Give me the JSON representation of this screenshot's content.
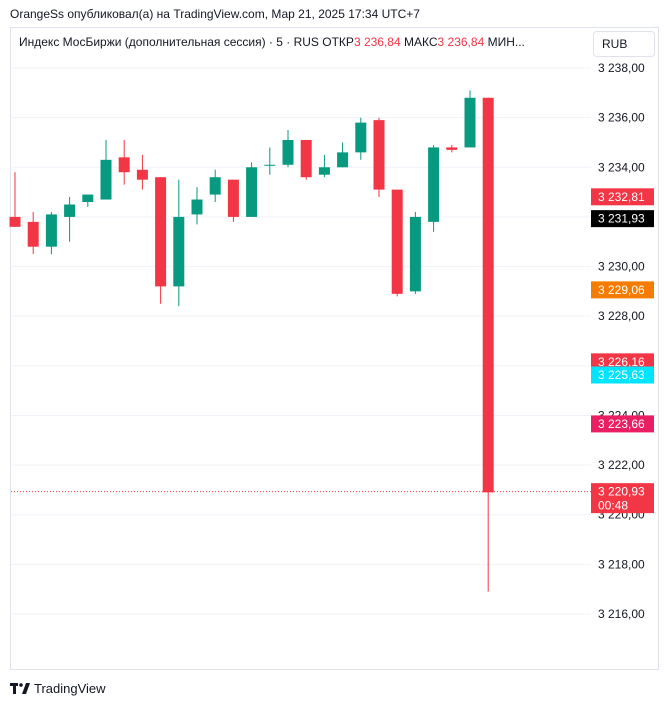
{
  "header": {
    "text": "OrangeSs опубликовал(а) на TradingView.com, Мар 21, 2025 17:34 UTC+7"
  },
  "legend": {
    "symbol": "Индекс МосБиржи (дополнительная сессия) · 5 · RUS",
    "open_label": "ОТКР",
    "open_value": "3 236,84",
    "high_label": "МАКС",
    "high_value": "3 236,84",
    "low_label": "МИН..."
  },
  "currency_button": {
    "label": "RUB"
  },
  "colors": {
    "up": "#089981",
    "down": "#f23645",
    "grid": "#f0f3fa"
  },
  "chart_data": {
    "type": "candlestick",
    "ylim": [
      3214.4,
      3239.2
    ],
    "y_ticks": [
      3238,
      3236,
      3234,
      3232,
      3230,
      3228,
      3226,
      3224,
      3222,
      3220,
      3218,
      3216
    ],
    "y_tick_labels": [
      "3 238,00",
      "3 236,00",
      "3 234,00",
      "",
      "3 230,00",
      "3 228,00",
      "",
      "3 224,00",
      "3 222,00",
      "3 220,00",
      "3 218,00",
      "3 216,00"
    ],
    "candles": [
      {
        "o": 3232.0,
        "h": 3233.8,
        "l": 3231.6,
        "c": 3231.6
      },
      {
        "o": 3231.8,
        "h": 3232.2,
        "l": 3230.5,
        "c": 3230.8
      },
      {
        "o": 3230.8,
        "h": 3232.2,
        "l": 3230.5,
        "c": 3232.1
      },
      {
        "o": 3232.0,
        "h": 3232.8,
        "l": 3231.0,
        "c": 3232.5
      },
      {
        "o": 3232.6,
        "h": 3232.9,
        "l": 3232.4,
        "c": 3232.9
      },
      {
        "o": 3232.7,
        "h": 3235.1,
        "l": 3232.7,
        "c": 3234.3
      },
      {
        "o": 3234.4,
        "h": 3235.1,
        "l": 3233.3,
        "c": 3233.8
      },
      {
        "o": 3233.9,
        "h": 3234.5,
        "l": 3233.1,
        "c": 3233.5
      },
      {
        "o": 3233.6,
        "h": 3233.6,
        "l": 3228.5,
        "c": 3229.2
      },
      {
        "o": 3229.2,
        "h": 3233.5,
        "l": 3228.4,
        "c": 3232.0
      },
      {
        "o": 3232.1,
        "h": 3233.2,
        "l": 3231.7,
        "c": 3232.7
      },
      {
        "o": 3232.9,
        "h": 3233.9,
        "l": 3232.6,
        "c": 3233.6
      },
      {
        "o": 3233.5,
        "h": 3233.5,
        "l": 3231.8,
        "c": 3232.0
      },
      {
        "o": 3232.0,
        "h": 3234.2,
        "l": 3232.0,
        "c": 3234.0
      },
      {
        "o": 3234.1,
        "h": 3234.8,
        "l": 3233.7,
        "c": 3234.1
      },
      {
        "o": 3234.1,
        "h": 3235.5,
        "l": 3234.0,
        "c": 3235.1
      },
      {
        "o": 3235.1,
        "h": 3235.1,
        "l": 3233.5,
        "c": 3233.6
      },
      {
        "o": 3233.7,
        "h": 3234.5,
        "l": 3233.6,
        "c": 3234.0
      },
      {
        "o": 3234.0,
        "h": 3235.0,
        "l": 3234.0,
        "c": 3234.6
      },
      {
        "o": 3234.6,
        "h": 3236.0,
        "l": 3234.3,
        "c": 3235.8
      },
      {
        "o": 3235.9,
        "h": 3236.0,
        "l": 3232.8,
        "c": 3233.1
      },
      {
        "o": 3233.1,
        "h": 3233.1,
        "l": 3228.8,
        "c": 3228.9
      },
      {
        "o": 3229.0,
        "h": 3232.2,
        "l": 3228.9,
        "c": 3232.0
      },
      {
        "o": 3231.8,
        "h": 3234.9,
        "l": 3231.4,
        "c": 3234.8
      },
      {
        "o": 3234.8,
        "h": 3234.9,
        "l": 3234.6,
        "c": 3234.7
      },
      {
        "o": 3234.8,
        "h": 3237.1,
        "l": 3234.8,
        "c": 3236.8
      },
      {
        "o": 3236.8,
        "h": 3236.8,
        "l": 3216.9,
        "c": 3220.9
      }
    ],
    "current_price_line": 3220.93,
    "price_badges": [
      {
        "value": 3232.81,
        "label": "3 232,81",
        "color": "#f23645"
      },
      {
        "value": 3231.93,
        "label": "3 231,93",
        "color": "#000000"
      },
      {
        "value": 3229.06,
        "label": "3 229,06",
        "color": "#f57c00"
      },
      {
        "value": 3226.16,
        "label": "3 226,16",
        "color": "#f23645"
      },
      {
        "value": 3225.63,
        "label": "3 225,63",
        "color": "#00e5ff",
        "text_color": "#131722"
      },
      {
        "value": 3223.66,
        "label": "3 223,66",
        "color": "#e91e63"
      },
      {
        "value": 3220.93,
        "label": "3 220,93",
        "sublabel": "00:48",
        "color": "#f23645"
      }
    ]
  },
  "footer": {
    "brand": "TradingView"
  }
}
